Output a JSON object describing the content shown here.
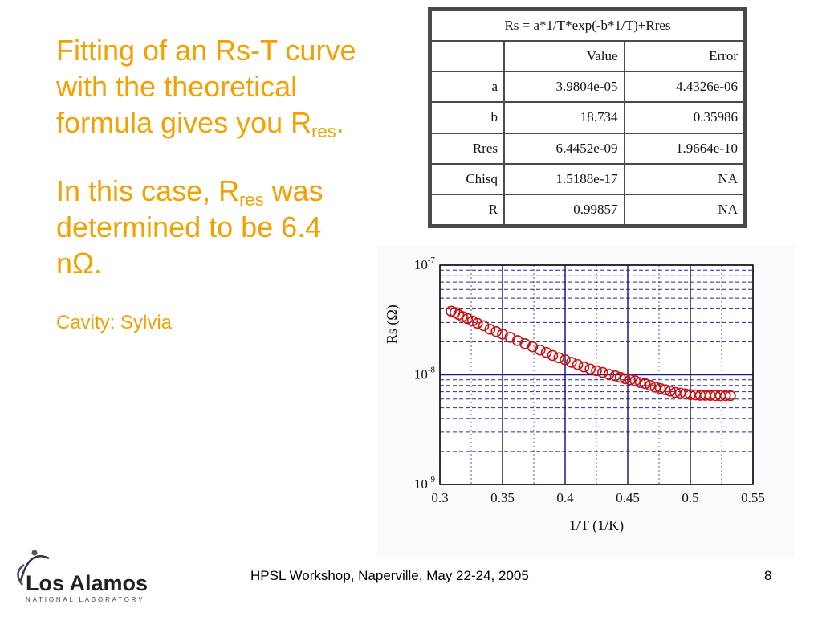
{
  "slide": {
    "para1_main": "Fitting of an Rs-T curve with the theoretical formula gives you R",
    "para1_sub": "res",
    "para1_end": ".",
    "para2_main": "In this case, R",
    "para2_sub": "res",
    "para2_rest": " was determined to be 6.4 nΩ.",
    "cavity": "Cavity: Sylvia"
  },
  "fit_table": {
    "formula": "Rs = a*1/T*exp(-b*1/T)+Rres",
    "header": [
      "",
      "Value",
      "Error"
    ],
    "rows": [
      [
        "a",
        "3.9804e-05",
        "4.4326e-06"
      ],
      [
        "b",
        "18.734",
        "0.35986"
      ],
      [
        "Rres",
        "6.4452e-09",
        "1.9664e-10"
      ],
      [
        "Chisq",
        "1.5188e-17",
        "NA"
      ],
      [
        "R",
        "0.99857",
        "NA"
      ]
    ]
  },
  "chart_data": {
    "type": "scatter",
    "xlabel": "1/T (1/K)",
    "ylabel": "Rs (Ω)",
    "xlim": [
      0.3,
      0.55
    ],
    "ylim_log10": [
      -9,
      -7
    ],
    "yscale": "log",
    "xticks": [
      "0.3",
      "0.35",
      "0.4",
      "0.45",
      "0.5",
      "0.55"
    ],
    "yticks": [
      {
        "base": "10",
        "exp": "-7"
      },
      {
        "base": "10",
        "exp": "-8"
      },
      {
        "base": "10",
        "exp": "-9"
      }
    ],
    "grid": true,
    "series": [
      {
        "color": "#cc1111",
        "x": [
          0.309,
          0.312,
          0.315,
          0.318,
          0.322,
          0.326,
          0.33,
          0.335,
          0.34,
          0.345,
          0.35,
          0.356,
          0.362,
          0.368,
          0.374,
          0.38,
          0.385,
          0.39,
          0.395,
          0.4,
          0.405,
          0.41,
          0.415,
          0.42,
          0.425,
          0.43,
          0.435,
          0.44,
          0.444,
          0.448,
          0.452,
          0.456,
          0.46,
          0.464,
          0.468,
          0.472,
          0.476,
          0.48,
          0.484,
          0.488,
          0.492,
          0.496,
          0.5,
          0.504,
          0.508,
          0.512,
          0.516,
          0.52,
          0.524,
          0.528,
          0.532
        ],
        "y": [
          3.8e-08,
          3.7e-08,
          3.55e-08,
          3.4e-08,
          3.25e-08,
          3.1e-08,
          2.95e-08,
          2.8e-08,
          2.6e-08,
          2.48e-08,
          2.35e-08,
          2.2e-08,
          2.05e-08,
          1.92e-08,
          1.8e-08,
          1.68e-08,
          1.6e-08,
          1.5e-08,
          1.43e-08,
          1.37e-08,
          1.3e-08,
          1.24e-08,
          1.18e-08,
          1.13e-08,
          1.09e-08,
          1.05e-08,
          1.01e-08,
          9.8e-09,
          9.5e-09,
          9.2e-09,
          9e-09,
          8.8e-09,
          8.5e-09,
          8.3e-09,
          8e-09,
          7.7e-09,
          7.5e-09,
          7.3e-09,
          7.1e-09,
          6.9e-09,
          6.8e-09,
          6.7e-09,
          6.6e-09,
          6.55e-09,
          6.5e-09,
          6.5e-09,
          6.48e-09,
          6.45e-09,
          6.45e-09,
          6.45e-09,
          6.45e-09
        ]
      }
    ]
  },
  "footer": {
    "event": "HPSL Workshop, Naperville, May 22-24, 2005",
    "page": "8"
  },
  "logo": {
    "name": "Los Alamos",
    "tagline": "NATIONAL LABORATORY"
  }
}
